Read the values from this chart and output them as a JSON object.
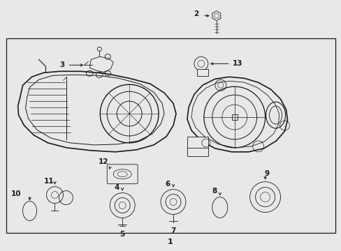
{
  "background_color": "#e8e8e8",
  "box_background": "#e8e8e8",
  "line_color": "#1a1a1a",
  "figsize": [
    4.89,
    3.6
  ],
  "dpi": 100
}
